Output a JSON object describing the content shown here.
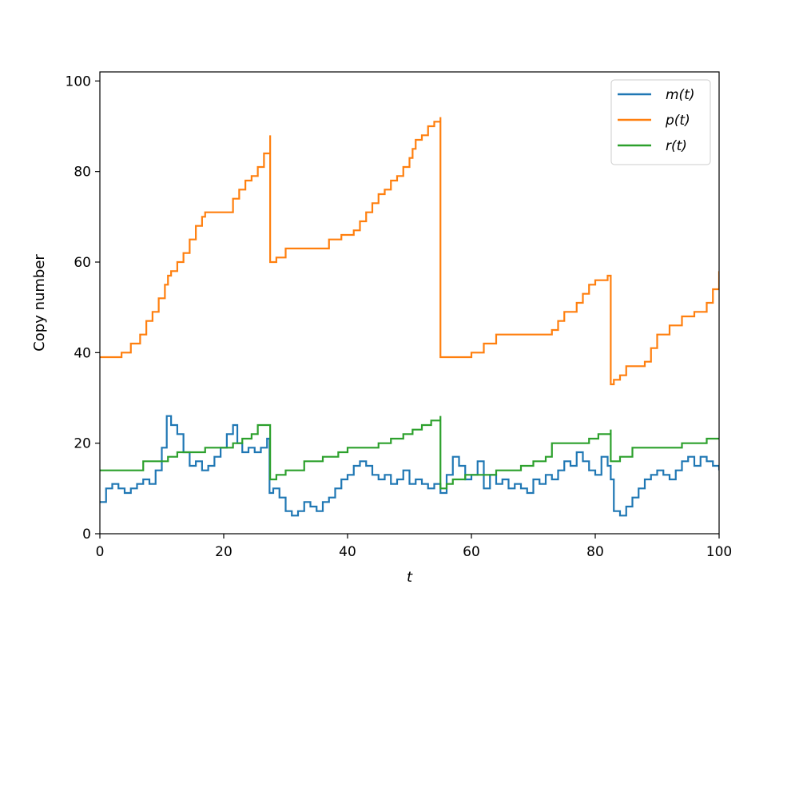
{
  "chart_data": {
    "type": "line",
    "title": "",
    "xlabel": "t",
    "ylabel": "Copy number",
    "xlim": [
      0,
      100
    ],
    "ylim": [
      0,
      102
    ],
    "xticks": [
      0,
      20,
      40,
      60,
      80,
      100
    ],
    "yticks": [
      0,
      20,
      40,
      60,
      80,
      100
    ],
    "grid": false,
    "legend_position": "top-right",
    "series": [
      {
        "name": "m(t)",
        "color": "#1f77b4",
        "x": [
          0,
          1,
          2,
          3,
          4,
          5,
          6,
          7,
          8,
          9,
          10,
          10.8,
          11.5,
          12.5,
          13.5,
          14.5,
          15.5,
          16.5,
          17.5,
          18.5,
          19.5,
          20.5,
          21.5,
          22.2,
          23,
          24,
          25,
          26,
          27,
          27.4,
          28,
          29,
          30,
          31,
          32,
          33,
          34,
          35,
          36,
          37,
          38,
          39,
          40,
          41,
          42,
          43,
          44,
          45,
          46,
          47,
          48,
          49,
          50,
          51,
          52,
          53,
          54,
          55,
          55.2,
          56,
          57,
          58,
          59,
          60,
          61,
          62,
          63,
          64,
          65,
          66,
          67,
          68,
          69,
          70,
          71,
          72,
          73,
          74,
          75,
          76,
          77,
          78,
          79,
          80,
          81,
          82,
          82.5,
          83,
          84,
          85,
          86,
          87,
          88,
          89,
          90,
          91,
          92,
          93,
          94,
          95,
          96,
          97,
          98,
          99,
          100
        ],
        "values": [
          7,
          10,
          11,
          10,
          9,
          10,
          11,
          12,
          11,
          14,
          19,
          26,
          24,
          22,
          18,
          15,
          16,
          14,
          15,
          17,
          19,
          22,
          24,
          20,
          18,
          19,
          18,
          19,
          21,
          9,
          10,
          8,
          5,
          4,
          5,
          7,
          6,
          5,
          7,
          8,
          10,
          12,
          13,
          15,
          16,
          15,
          13,
          12,
          13,
          11,
          12,
          14,
          11,
          12,
          11,
          10,
          11,
          9,
          9,
          13,
          17,
          15,
          12,
          13,
          16,
          10,
          13,
          11,
          12,
          10,
          11,
          10,
          9,
          12,
          11,
          13,
          12,
          14,
          16,
          15,
          18,
          16,
          14,
          13,
          17,
          15,
          12,
          5,
          4,
          6,
          8,
          10,
          12,
          13,
          14,
          13,
          12,
          14,
          16,
          17,
          15,
          17,
          16,
          15,
          14
        ]
      },
      {
        "name": "p(t)",
        "color": "#ff7f0e",
        "x": [
          0,
          2,
          3.5,
          5,
          6.5,
          7.5,
          8.5,
          9.5,
          10.5,
          11,
          11.5,
          12.5,
          13.5,
          14.5,
          15.5,
          16.5,
          17,
          18,
          20,
          21.5,
          22.5,
          23.5,
          24.5,
          25.5,
          26.5,
          27.5,
          27.5,
          28.5,
          30,
          35,
          37,
          39,
          41,
          42,
          43,
          44,
          45,
          46,
          47,
          48,
          49,
          50,
          50.5,
          51,
          52,
          53,
          54,
          55,
          55,
          59,
          60,
          62,
          64,
          69,
          73,
          74,
          75,
          77,
          78,
          79,
          80,
          82,
          82.5,
          82.5,
          83,
          84,
          85,
          87,
          88,
          89,
          90,
          92,
          94,
          96,
          98,
          99,
          100
        ],
        "values": [
          39,
          39,
          40,
          42,
          44,
          47,
          49,
          52,
          55,
          57,
          58,
          60,
          62,
          65,
          68,
          70,
          71,
          71,
          71,
          74,
          76,
          78,
          79,
          81,
          84,
          88,
          60,
          61,
          63,
          63,
          65,
          66,
          67,
          69,
          71,
          73,
          75,
          76,
          78,
          79,
          81,
          83,
          85,
          87,
          88,
          90,
          91,
          92,
          39,
          39,
          40,
          42,
          44,
          44,
          45,
          47,
          49,
          51,
          53,
          55,
          56,
          57,
          57,
          33,
          34,
          35,
          37,
          37,
          38,
          41,
          44,
          46,
          48,
          49,
          51,
          54,
          58
        ]
      },
      {
        "name": "r(t)",
        "color": "#2ca02c",
        "x": [
          0,
          7,
          11,
          12.5,
          17,
          21.5,
          23,
          24.5,
          25.5,
          27.5,
          27.5,
          28.5,
          30,
          33,
          36,
          38.5,
          40,
          42,
          45,
          47,
          49,
          50.5,
          52,
          53.5,
          55,
          55,
          56,
          57,
          59,
          64,
          68,
          70,
          72,
          73,
          79,
          80.5,
          82.5,
          82.5,
          84,
          86,
          94,
          98,
          100
        ],
        "values": [
          14,
          16,
          17,
          18,
          19,
          20,
          21,
          22,
          24,
          24,
          12,
          13,
          14,
          16,
          17,
          18,
          19,
          19,
          20,
          21,
          22,
          23,
          24,
          25,
          26,
          10,
          11,
          12,
          13,
          14,
          15,
          16,
          17,
          20,
          21,
          22,
          23,
          16,
          17,
          19,
          20,
          21,
          21
        ]
      }
    ]
  }
}
